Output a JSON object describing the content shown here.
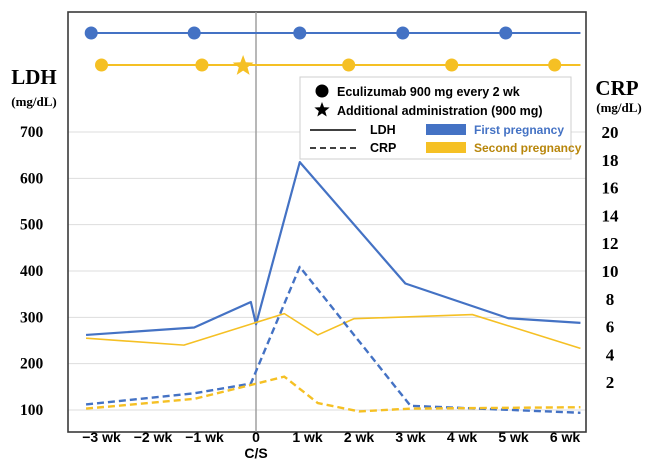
{
  "chart_data": {
    "type": "line",
    "left_axis": {
      "title": "LDH",
      "unit": "(mg/dL)",
      "ticks": [
        100,
        200,
        300,
        400,
        500,
        600,
        700
      ],
      "range": [
        100,
        700
      ]
    },
    "right_axis": {
      "title": "CRP",
      "unit": "(mg/dL)",
      "ticks": [
        2,
        4,
        6,
        8,
        10,
        12,
        14,
        16,
        18,
        20
      ],
      "range": [
        0,
        20
      ]
    },
    "x_axis": {
      "ticks": [
        "−3 wk",
        "−2 wk",
        "−1 wk",
        "0",
        "1 wk",
        "2 wk",
        "3 wk",
        "4 wk",
        "5 wk",
        "6 wk"
      ],
      "tick_values": [
        -3,
        -2,
        -1,
        0,
        1,
        2,
        3,
        4,
        5,
        6
      ],
      "event_label": "C/S",
      "event_x": 0
    },
    "colors": {
      "first": "#4472c4",
      "second": "#f5c024",
      "text_first": "#4472c4",
      "text_second": "#b8860b"
    },
    "series": [
      {
        "name": "First pregnancy",
        "measure": "LDH",
        "axis": "left",
        "style": "solid",
        "color": "#4472c4",
        "x": [
          -3.3,
          -1.2,
          -0.1,
          0,
          0.85,
          2.9,
          4.9,
          6.3
        ],
        "y": [
          262,
          278,
          333,
          285,
          635,
          373,
          298,
          288
        ]
      },
      {
        "name": "Second pregnancy",
        "measure": "LDH",
        "axis": "left",
        "style": "solid",
        "color": "#f5c024",
        "x": [
          -3.3,
          -1.4,
          0.55,
          1.2,
          1.9,
          4.2,
          6.3
        ],
        "y": [
          255,
          240,
          308,
          262,
          297,
          306,
          233
        ]
      },
      {
        "name": "First pregnancy",
        "measure": "CRP",
        "axis": "right",
        "style": "dashed",
        "color": "#4472c4",
        "x": [
          -3.3,
          -1.2,
          -0.1,
          0.85,
          3.0,
          6.3
        ],
        "y": [
          0.4,
          1.2,
          1.9,
          10.3,
          0.3,
          -0.2
        ]
      },
      {
        "name": "Second pregnancy",
        "measure": "CRP",
        "axis": "right",
        "style": "dashed",
        "color": "#f5c024",
        "x": [
          -3.3,
          -1.2,
          -0.1,
          0.55,
          1.2,
          2.0,
          3.0,
          6.3
        ],
        "y": [
          0.1,
          0.8,
          1.8,
          2.4,
          0.5,
          -0.1,
          0.1,
          0.2
        ]
      }
    ],
    "dosing": {
      "first": {
        "x": [
          -3.2,
          -1.2,
          0.85,
          2.85,
          4.85
        ],
        "end_x": 6.3
      },
      "second": {
        "x": [
          -3.0,
          -1.05,
          1.8,
          3.8,
          5.8
        ],
        "additional_x": [
          -0.25
        ],
        "end_x": 6.3
      }
    },
    "legend": {
      "items": [
        {
          "symbol": "circle",
          "label": "Eculizumab 900 mg every 2 wk"
        },
        {
          "symbol": "star",
          "label": "Additional administration (900 mg)"
        },
        {
          "symbol": "solid-line",
          "label": "LDH"
        },
        {
          "symbol": "dashed-line",
          "label": "CRP"
        },
        {
          "symbol": "blue-bar",
          "label": "First pregnancy"
        },
        {
          "symbol": "yellow-bar",
          "label": "Second pregnancy"
        }
      ],
      "placement": "top-right"
    },
    "grid": true
  }
}
